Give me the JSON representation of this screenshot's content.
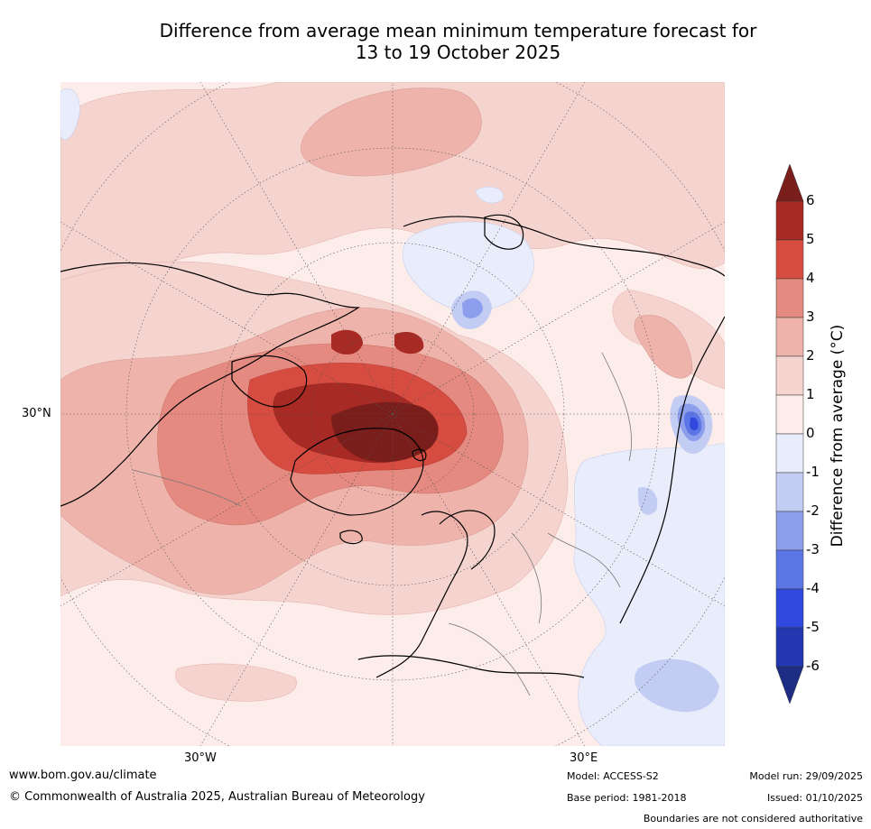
{
  "title_line1": "Difference from average mean minimum temperature forecast for",
  "title_line2": "13 to 19 October 2025",
  "map": {
    "lat_label": "30°N",
    "lon_labels": [
      "30°W",
      "30°E"
    ]
  },
  "legend": {
    "label": "Difference from average (°C)",
    "ticks": [
      "6",
      "5",
      "4",
      "3",
      "2",
      "1",
      "0",
      "-1",
      "-2",
      "-3",
      "-4",
      "-5",
      "-6"
    ],
    "colors": [
      "#7a1e1b",
      "#a82a24",
      "#d64c40",
      "#e48a80",
      "#eeb4ac",
      "#f5d4d0",
      "#fcecea",
      "#e8ecfb",
      "#c3cdf4",
      "#8c9eec",
      "#5c76e6",
      "#3049dc",
      "#2338b0",
      "#1e2d84"
    ]
  },
  "footer": {
    "website": "www.bom.gov.au/climate",
    "copyright": "© Commonwealth of Australia 2025, Australian Bureau of Meteorology",
    "model": "Model: ACCESS-S2",
    "base_period": "Base period: 1981-2018",
    "model_run": "Model run: 29/09/2025",
    "issued": "Issued: 01/10/2025",
    "disclaimer": "Boundaries are not considered authoritative"
  }
}
